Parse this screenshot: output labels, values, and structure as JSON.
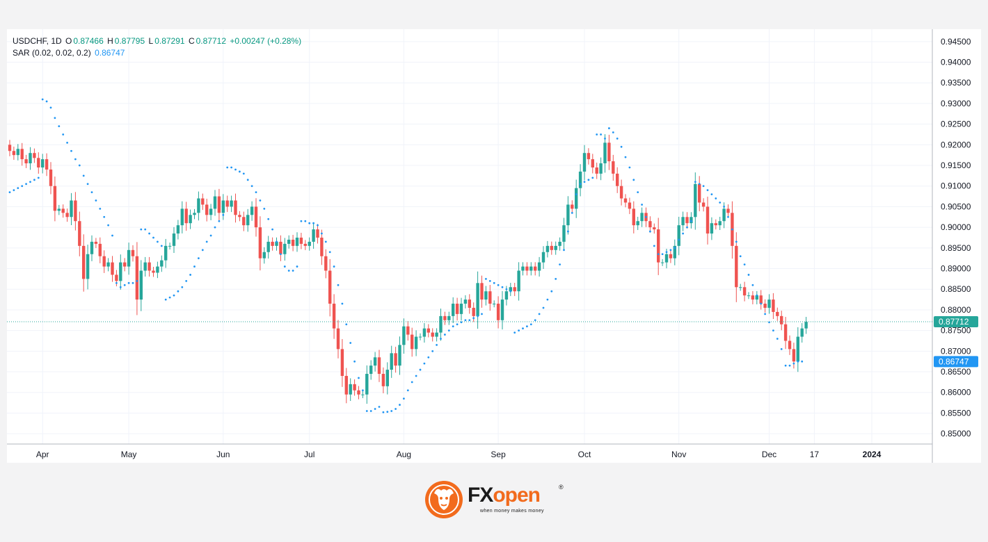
{
  "header": {
    "symbol": "USDCHF, 1D",
    "o_label": "O",
    "o_value": "0.87466",
    "h_label": "H",
    "h_value": "0.87795",
    "l_label": "L",
    "l_value": "0.87291",
    "c_label": "C",
    "c_value": "0.87712",
    "change": "+0.00247 (+0.28%)",
    "sar_label": "SAR (0.02, 0.02, 0.2)",
    "sar_value": "0.86747"
  },
  "brand": {
    "name_part1": "FX",
    "name_part2": "open",
    "registered": "®",
    "tagline": "when money makes money"
  },
  "colors": {
    "up": "#26a69a",
    "down": "#ef5350",
    "sar": "#2196f3",
    "current_price_label": "#26a69a",
    "sar_label": "#2196f3",
    "brand_orange": "#f26b1d"
  },
  "chart_data": {
    "type": "candlestick",
    "symbol": "USDCHF",
    "timeframe": "1D",
    "ylim": [
      0.8475,
      0.948
    ],
    "y_ticks": [
      "0.94500",
      "0.94000",
      "0.93500",
      "0.93000",
      "0.92500",
      "0.92000",
      "0.91500",
      "0.91000",
      "0.90500",
      "0.90000",
      "0.89500",
      "0.89000",
      "0.88500",
      "0.88000",
      "0.87500",
      "0.87000",
      "0.86500",
      "0.86000",
      "0.85500",
      "0.85000"
    ],
    "x_labels": [
      {
        "label": "Apr",
        "i": 8
      },
      {
        "label": "May",
        "i": 29
      },
      {
        "label": "Jun",
        "i": 52
      },
      {
        "label": "Jul",
        "i": 73
      },
      {
        "label": "Aug",
        "i": 96
      },
      {
        "label": "Sep",
        "i": 119
      },
      {
        "label": "Oct",
        "i": 140
      },
      {
        "label": "Nov",
        "i": 163
      },
      {
        "label": "Dec",
        "i": 185
      },
      {
        "label": "17",
        "i": 196
      },
      {
        "label": "2024",
        "i": 210
      }
    ],
    "current_price": 0.87712,
    "current_price_label": "0.87712",
    "sar_current": 0.86747,
    "sar_current_label": "0.86747",
    "closes": [
      0.9185,
      0.9175,
      0.919,
      0.9165,
      0.9155,
      0.918,
      0.9168,
      0.9145,
      0.9165,
      0.914,
      0.91,
      0.904,
      0.9045,
      0.9035,
      0.9025,
      0.9065,
      0.9015,
      0.8955,
      0.8875,
      0.8935,
      0.8965,
      0.896,
      0.893,
      0.8905,
      0.8915,
      0.8885,
      0.887,
      0.8915,
      0.8905,
      0.8945,
      0.893,
      0.8825,
      0.8895,
      0.8915,
      0.8895,
      0.889,
      0.8905,
      0.892,
      0.8955,
      0.8955,
      0.8985,
      0.9005,
      0.9045,
      0.901,
      0.903,
      0.9035,
      0.907,
      0.9055,
      0.903,
      0.9045,
      0.9075,
      0.9035,
      0.9065,
      0.905,
      0.9065,
      0.903,
      0.9025,
      0.9005,
      0.903,
      0.905,
      0.9,
      0.8925,
      0.894,
      0.8965,
      0.8955,
      0.8965,
      0.8935,
      0.896,
      0.897,
      0.8955,
      0.8975,
      0.896,
      0.8955,
      0.8965,
      0.8995,
      0.8975,
      0.893,
      0.8895,
      0.8815,
      0.8755,
      0.8705,
      0.864,
      0.8595,
      0.862,
      0.8605,
      0.8595,
      0.8595,
      0.8645,
      0.8665,
      0.8685,
      0.8645,
      0.8615,
      0.8655,
      0.8695,
      0.8665,
      0.8715,
      0.876,
      0.874,
      0.8705,
      0.8735,
      0.8735,
      0.8755,
      0.8745,
      0.8735,
      0.8745,
      0.8785,
      0.8775,
      0.8785,
      0.8815,
      0.879,
      0.8815,
      0.8825,
      0.8805,
      0.8785,
      0.8865,
      0.8825,
      0.8845,
      0.8815,
      0.8815,
      0.8775,
      0.8825,
      0.8845,
      0.8855,
      0.8845,
      0.8895,
      0.8905,
      0.8895,
      0.8905,
      0.8895,
      0.8915,
      0.894,
      0.8955,
      0.8945,
      0.8955,
      0.8965,
      0.9005,
      0.9055,
      0.9045,
      0.9095,
      0.9135,
      0.918,
      0.9165,
      0.9145,
      0.913,
      0.9155,
      0.9205,
      0.916,
      0.913,
      0.91,
      0.907,
      0.906,
      0.9045,
      0.9005,
      0.9015,
      0.9035,
      0.9015,
      0.9,
      0.8995,
      0.8915,
      0.8915,
      0.8935,
      0.8925,
      0.8955,
      0.9005,
      0.9025,
      0.901,
      0.9025,
      0.9105,
      0.906,
      0.905,
      0.8985,
      0.901,
      0.9005,
      0.9015,
      0.9045,
      0.9035,
      0.8955,
      0.8855,
      0.8855,
      0.8835,
      0.8835,
      0.8825,
      0.8835,
      0.8815,
      0.8805,
      0.8825,
      0.8795,
      0.8785,
      0.8765,
      0.8725,
      0.8705,
      0.8675,
      0.8735,
      0.8755,
      0.8771
    ],
    "sar": [
      0.9085,
      0.909,
      0.9095,
      0.91,
      0.9105,
      0.911,
      0.9115,
      0.912,
      0.931,
      0.9305,
      0.929,
      0.9265,
      0.9245,
      0.9225,
      0.9205,
      0.9185,
      0.9165,
      0.915,
      0.9125,
      0.9105,
      0.9085,
      0.9065,
      0.9045,
      0.9025,
      0.9005,
      0.898,
      0.8865,
      0.8855,
      0.886,
      0.8865,
      0.8865,
      0.887,
      0.8995,
      0.8995,
      0.8985,
      0.8975,
      0.8965,
      0.8955,
      0.8825,
      0.883,
      0.8835,
      0.8845,
      0.8855,
      0.887,
      0.8885,
      0.8905,
      0.8925,
      0.8945,
      0.8965,
      0.898,
      0.9,
      0.9015,
      0.903,
      0.9145,
      0.9145,
      0.914,
      0.9135,
      0.913,
      0.9115,
      0.91,
      0.9085,
      0.9065,
      0.9045,
      0.902,
      0.8995,
      0.8965,
      0.8935,
      0.8905,
      0.8895,
      0.8895,
      0.8905,
      0.9015,
      0.9015,
      0.901,
      0.901,
      0.9005,
      0.8985,
      0.8965,
      0.894,
      0.8905,
      0.886,
      0.8815,
      0.8765,
      0.872,
      0.8675,
      0.8635,
      0.8605,
      0.8555,
      0.8555,
      0.856,
      0.8565,
      0.8552,
      0.8553,
      0.8555,
      0.856,
      0.857,
      0.8585,
      0.8605,
      0.8625,
      0.864,
      0.8655,
      0.867,
      0.8685,
      0.87,
      0.8715,
      0.873,
      0.874,
      0.875,
      0.876,
      0.8765,
      0.877,
      0.8775,
      0.8775,
      0.878,
      0.8785,
      0.879,
      0.8875,
      0.887,
      0.8865,
      0.886,
      0.8855,
      0.885,
      0.8845,
      0.8745,
      0.875,
      0.8755,
      0.876,
      0.8765,
      0.8775,
      0.879,
      0.8805,
      0.8825,
      0.8845,
      0.8875,
      0.891,
      0.8945,
      0.899,
      0.9035,
      0.908,
      0.9105,
      0.911,
      0.9115,
      0.912,
      0.9225,
      0.9225,
      0.9215,
      0.924,
      0.923,
      0.9215,
      0.9195,
      0.917,
      0.9145,
      0.9115,
      0.9085,
      0.9055,
      0.9025,
      0.899,
      0.8955,
      0.8935,
      0.8935,
      0.894,
      0.8945,
      0.895,
      0.897,
      0.8985,
      0.9,
      0.9015,
      0.911,
      0.9105,
      0.91,
      0.909,
      0.908,
      0.907,
      0.906,
      0.905,
      0.9025,
      0.8995,
      0.8965,
      0.893,
      0.891,
      0.8885,
      0.886,
      0.8835,
      0.8815,
      0.879,
      0.877,
      0.875,
      0.873,
      0.8705,
      0.8665,
      0.8665,
      0.867,
      0.8675,
      0.8675
    ]
  }
}
